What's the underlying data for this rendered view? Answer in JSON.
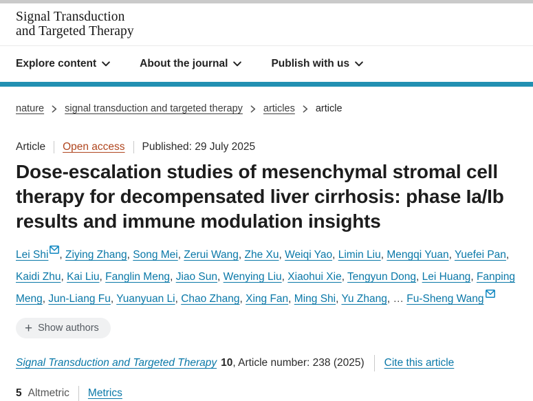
{
  "header": {
    "journal_name_line1": "Signal Transduction",
    "journal_name_line2": "and Targeted Therapy"
  },
  "nav": {
    "items": [
      {
        "label": "Explore content"
      },
      {
        "label": "About the journal"
      },
      {
        "label": "Publish with us"
      }
    ]
  },
  "breadcrumb": {
    "items": [
      {
        "label": "nature"
      },
      {
        "label": "signal transduction and targeted therapy"
      },
      {
        "label": "articles"
      },
      {
        "label": "article"
      }
    ]
  },
  "meta": {
    "type": "Article",
    "access": "Open access",
    "published": "Published: 29 July 2025"
  },
  "title": "Dose-escalation studies of mesenchymal stromal cell therapy for decompensated liver cirrhosis: phase Ia/Ib results and immune modulation insights",
  "authors": {
    "list": [
      {
        "name": "Lei Shi",
        "email": true
      },
      {
        "name": "Ziying Zhang"
      },
      {
        "name": "Song Mei"
      },
      {
        "name": "Zerui Wang"
      },
      {
        "name": "Zhe Xu"
      },
      {
        "name": "Weiqi Yao"
      },
      {
        "name": "Limin Liu"
      },
      {
        "name": "Mengqi Yuan"
      },
      {
        "name": "Yuefei Pan"
      },
      {
        "name": "Kaidi Zhu"
      },
      {
        "name": "Kai Liu"
      },
      {
        "name": "Fanglin Meng"
      },
      {
        "name": "Jiao Sun"
      },
      {
        "name": "Wenying Liu"
      },
      {
        "name": "Xiaohui Xie"
      },
      {
        "name": "Tengyun Dong"
      },
      {
        "name": "Lei Huang"
      },
      {
        "name": "Fanping Meng"
      },
      {
        "name": "Jun-Liang Fu"
      },
      {
        "name": "Yuanyuan Li"
      },
      {
        "name": "Chao Zhang"
      },
      {
        "name": "Xing Fan"
      },
      {
        "name": "Ming Shi"
      },
      {
        "name": "Yu Zhang"
      }
    ],
    "ellipsis": "…",
    "last_author": {
      "name": "Fu-Sheng Wang",
      "email": true
    },
    "show_authors_label": "Show authors"
  },
  "citation": {
    "journal": "Signal Transduction and Targeted Therapy",
    "volume": "10",
    "article_number_text": ", Article number: 238 (2025)",
    "cite_link": "Cite this article"
  },
  "metrics": {
    "altmetric_count": "5",
    "altmetric_label": "Altmetric",
    "metrics_link": "Metrics"
  },
  "colors": {
    "link_blue": "#0a78a8",
    "email_icon_blue": "#0e86c0",
    "open_access_rust": "#b0461f",
    "accent_teal": "#2290b2"
  }
}
